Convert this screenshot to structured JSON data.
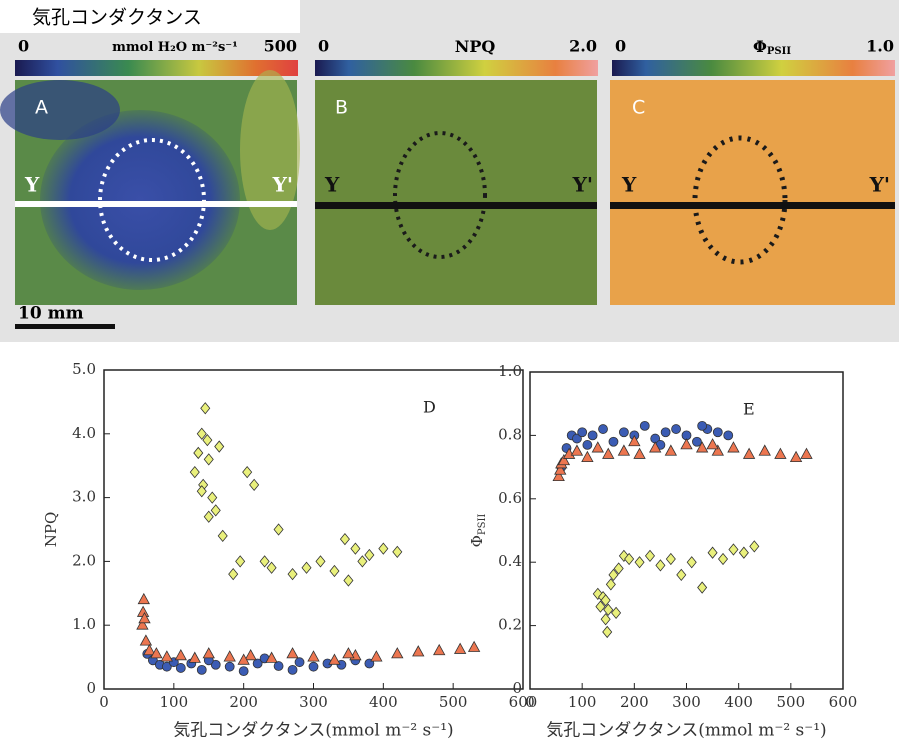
{
  "header": {
    "title": "気孔コンダクタンス",
    "scale_bar": "10 mm"
  },
  "panels": [
    {
      "label": "A",
      "scale_min": "0",
      "scale_title": "mmol H₂O m⁻²s⁻¹",
      "scale_max": "500",
      "left_mark": "Y",
      "right_mark": "Y'"
    },
    {
      "label": "B",
      "scale_min": "0",
      "scale_title": "NPQ",
      "scale_max": "2.0",
      "left_mark": "Y",
      "right_mark": "Y'"
    },
    {
      "label": "C",
      "scale_min": "0",
      "scale_title": "Φ",
      "scale_title_sub": "PSII",
      "scale_max": "1.0",
      "left_mark": "Y",
      "right_mark": "Y'"
    }
  ],
  "chart_data": [
    {
      "type": "scatter",
      "annotation": "D",
      "x_label": "気孔コンダクタンス(mmol m⁻² s⁻¹)",
      "y_label": "NPQ",
      "xlim": [
        0,
        600
      ],
      "xticks": [
        0,
        100,
        200,
        300,
        400,
        500,
        600
      ],
      "ylim": [
        0,
        5
      ],
      "yticks": [
        0,
        {
          "value": 1,
          "label": "1.0"
        },
        {
          "value": 2,
          "label": "2.0"
        },
        {
          "value": 3,
          "label": "3.0"
        },
        {
          "value": 4,
          "label": "4.0"
        },
        {
          "value": 5,
          "label": "5.0"
        }
      ],
      "series": [
        {
          "color": "#3b5cb4",
          "marker": "circle",
          "x": [
            62,
            70,
            80,
            90,
            100,
            110,
            125,
            140,
            160,
            180,
            200,
            220,
            250,
            280,
            300,
            320,
            340,
            360,
            380,
            150,
            230,
            270
          ],
          "values": [
            0.55,
            0.45,
            0.38,
            0.35,
            0.42,
            0.33,
            0.4,
            0.3,
            0.38,
            0.35,
            0.28,
            0.4,
            0.36,
            0.42,
            0.35,
            0.4,
            0.38,
            0.45,
            0.4,
            0.45,
            0.48,
            0.3
          ]
        },
        {
          "color": "#ec7650",
          "marker": "triangle",
          "x": [
            55,
            56,
            57,
            58,
            60,
            65,
            75,
            90,
            110,
            130,
            150,
            180,
            210,
            240,
            270,
            300,
            330,
            360,
            390,
            420,
            450,
            480,
            510,
            530,
            200,
            350
          ],
          "values": [
            1.0,
            1.2,
            1.4,
            1.1,
            0.75,
            0.6,
            0.55,
            0.5,
            0.52,
            0.48,
            0.55,
            0.5,
            0.52,
            0.48,
            0.55,
            0.5,
            0.45,
            0.52,
            0.5,
            0.55,
            0.58,
            0.6,
            0.62,
            0.65,
            0.45,
            0.55
          ]
        },
        {
          "color": "#e9f07c",
          "marker": "diamond",
          "x": [
            130,
            135,
            140,
            142,
            145,
            148,
            150,
            155,
            160,
            165,
            140,
            150,
            170,
            185,
            195,
            205,
            215,
            230,
            250,
            270,
            290,
            310,
            330,
            345,
            350,
            360,
            370,
            380,
            400,
            420,
            240
          ],
          "values": [
            3.4,
            3.7,
            4.0,
            3.2,
            4.4,
            3.9,
            3.6,
            3.0,
            2.8,
            3.8,
            3.1,
            2.7,
            2.4,
            1.8,
            2.0,
            3.4,
            3.2,
            2.0,
            2.5,
            1.8,
            1.9,
            2.0,
            1.85,
            2.35,
            1.7,
            2.2,
            2.0,
            2.1,
            2.2,
            2.15,
            1.9
          ]
        }
      ]
    },
    {
      "type": "scatter",
      "annotation": "E",
      "x_label": "気孔コンダクタンス(mmol m⁻² s⁻¹)",
      "y_label": "Φ",
      "y_label_sub": "PSII",
      "xlim": [
        0,
        600
      ],
      "xticks": [
        0,
        100,
        200,
        300,
        400,
        500,
        600
      ],
      "ylim": [
        0,
        1
      ],
      "yticks": [
        0,
        0.2,
        0.4,
        0.6,
        0.8,
        {
          "value": 1,
          "label": "1.0"
        }
      ],
      "series": [
        {
          "color": "#3b5cb4",
          "marker": "circle",
          "x": [
            60,
            70,
            80,
            90,
            100,
            120,
            140,
            160,
            180,
            200,
            220,
            240,
            260,
            280,
            300,
            320,
            340,
            360,
            380,
            110,
            250,
            330
          ],
          "values": [
            0.7,
            0.76,
            0.8,
            0.79,
            0.81,
            0.8,
            0.82,
            0.78,
            0.81,
            0.8,
            0.83,
            0.79,
            0.81,
            0.82,
            0.8,
            0.78,
            0.82,
            0.81,
            0.8,
            0.77,
            0.77,
            0.83
          ]
        },
        {
          "color": "#ec7650",
          "marker": "triangle",
          "x": [
            55,
            58,
            60,
            65,
            75,
            90,
            110,
            130,
            150,
            180,
            210,
            240,
            270,
            300,
            330,
            360,
            390,
            420,
            450,
            480,
            510,
            530,
            200,
            350
          ],
          "values": [
            0.67,
            0.69,
            0.71,
            0.72,
            0.74,
            0.75,
            0.73,
            0.76,
            0.74,
            0.75,
            0.74,
            0.76,
            0.75,
            0.77,
            0.76,
            0.75,
            0.76,
            0.74,
            0.75,
            0.74,
            0.73,
            0.74,
            0.78,
            0.77
          ]
        },
        {
          "color": "#e9f07c",
          "marker": "diamond",
          "x": [
            130,
            135,
            140,
            145,
            148,
            150,
            155,
            160,
            170,
            180,
            190,
            210,
            230,
            250,
            270,
            290,
            310,
            330,
            350,
            370,
            390,
            410,
            430,
            145,
            165
          ],
          "values": [
            0.3,
            0.26,
            0.29,
            0.22,
            0.18,
            0.25,
            0.33,
            0.36,
            0.38,
            0.42,
            0.41,
            0.4,
            0.42,
            0.39,
            0.41,
            0.36,
            0.4,
            0.32,
            0.43,
            0.41,
            0.44,
            0.43,
            0.45,
            0.28,
            0.24
          ]
        }
      ]
    }
  ]
}
